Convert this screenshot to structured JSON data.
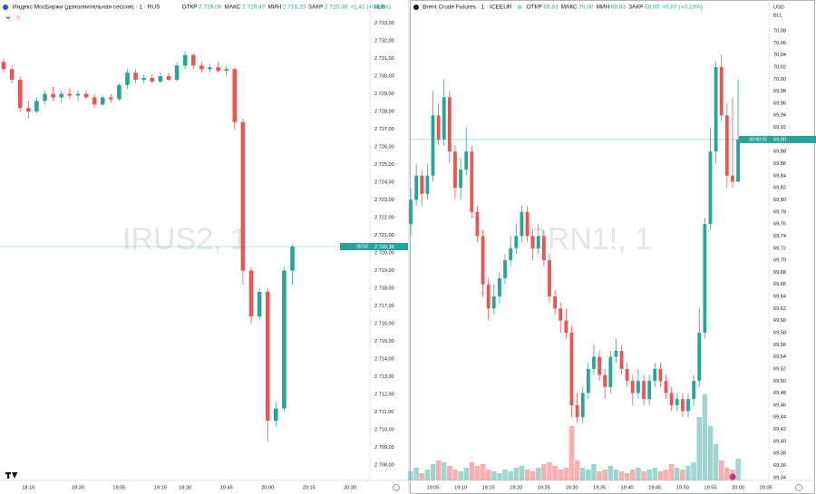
{
  "chart_data": [
    {
      "type": "candlestick",
      "title": "Индекс МосБиржи (дополнительная сессия) · 1 · RUS",
      "legend": [
        {
          "label": "ОТКР",
          "value": "2 719,00"
        },
        {
          "label": "МАКС",
          "value": "2 720,47"
        },
        {
          "label": "МИН",
          "value": "2 718,20"
        },
        {
          "label": "ЗАКР",
          "value": "2 720,36"
        }
      ],
      "change": "+1,41 (+0,05%)",
      "watermark": "IRUS2, 1",
      "currency": "RUB",
      "last_price_label": "2 720,36",
      "countdown": "00:52",
      "up_color": "#26a69a",
      "down_color": "#ef5350",
      "categories": [
        null,
        null,
        null,
        "18:15",
        null,
        null,
        null,
        null,
        null,
        "18:30",
        null,
        null,
        null,
        null,
        "19:05",
        null,
        null,
        null,
        null,
        "19:15",
        null,
        null,
        "19:30",
        null,
        null,
        null,
        null,
        "19:45",
        null,
        null,
        null,
        null,
        "20:00",
        null,
        null,
        null,
        null,
        "20:15",
        null,
        null,
        null,
        null,
        "20:30",
        null,
        null
      ],
      "open": [
        2730.8,
        2730.4,
        2729.8,
        2728.2,
        2728.0,
        2728.6,
        2729.0,
        2728.8,
        2729.0,
        2728.9,
        2729.0,
        2728.8,
        2728.4,
        2728.8,
        2728.7,
        2729.5,
        2730.2,
        2729.8,
        2729.9,
        2729.7,
        2730.0,
        2729.8,
        2730.6,
        2731.2,
        2730.6,
        2730.4,
        2730.5,
        2730.3,
        2730.4,
        2727.4,
        2719.0,
        2716.4,
        2717.8,
        2710.5,
        2711.2,
        2719.0,
        null,
        null,
        null,
        null,
        null,
        null,
        null,
        null,
        null
      ],
      "high": [
        2731.0,
        2730.6,
        2730.0,
        2728.6,
        2728.8,
        2729.2,
        2729.4,
        2729.2,
        2729.3,
        2729.2,
        2729.2,
        2729.0,
        2728.9,
        2729.0,
        2729.6,
        2730.4,
        2730.4,
        2730.1,
        2730.1,
        2730.2,
        2730.2,
        2730.8,
        2731.4,
        2731.3,
        2730.8,
        2730.7,
        2730.8,
        2730.6,
        2730.5,
        2727.6,
        2719.2,
        2718.0,
        2718.0,
        2711.6,
        2719.2,
        2720.47,
        null,
        null,
        null,
        null,
        null,
        null,
        null,
        null,
        null
      ],
      "low": [
        2730.2,
        2729.6,
        2728.0,
        2727.6,
        2727.9,
        2728.4,
        2728.6,
        2728.5,
        2728.7,
        2728.6,
        2728.7,
        2728.2,
        2728.3,
        2728.5,
        2728.6,
        2729.3,
        2729.6,
        2729.6,
        2729.6,
        2729.6,
        2729.7,
        2729.7,
        2730.4,
        2730.4,
        2730.2,
        2730.2,
        2730.2,
        2730.0,
        2727.0,
        2718.2,
        2716.0,
        2716.2,
        2709.3,
        2710.2,
        2711.0,
        2718.2,
        null,
        null,
        null,
        null,
        null,
        null,
        null,
        null,
        null
      ],
      "close": [
        2730.4,
        2729.8,
        2728.2,
        2728.0,
        2728.6,
        2729.0,
        2728.8,
        2729.0,
        2728.9,
        2729.0,
        2728.8,
        2728.4,
        2728.8,
        2728.7,
        2729.5,
        2730.2,
        2729.8,
        2729.9,
        2729.7,
        2730.0,
        2729.8,
        2730.6,
        2731.2,
        2730.6,
        2730.4,
        2730.5,
        2730.3,
        2730.4,
        2727.4,
        2719.0,
        2716.4,
        2717.8,
        2710.5,
        2711.2,
        2719.0,
        2720.36,
        null,
        null,
        null,
        null,
        null,
        null,
        null,
        null,
        null
      ],
      "ylim": [
        2707.2,
        2733.9
      ],
      "yticks": [
        {
          "value": 2708,
          "label": "2 708,00"
        },
        {
          "value": 2709,
          "label": "2 709,00"
        },
        {
          "value": 2710,
          "label": "2 710,00"
        },
        {
          "value": 2711,
          "label": "2 711,00"
        },
        {
          "value": 2712,
          "label": "2 712,00"
        },
        {
          "value": 2713,
          "label": "2 713,00"
        },
        {
          "value": 2714,
          "label": "2 714,00"
        },
        {
          "value": 2715,
          "label": "2 715,00"
        },
        {
          "value": 2716,
          "label": "2 716,00"
        },
        {
          "value": 2717,
          "label": "2 717,00"
        },
        {
          "value": 2718,
          "label": "2 718,00"
        },
        {
          "value": 2719,
          "label": "2 719,00"
        },
        {
          "value": 2720,
          "label": "2 720,00"
        },
        {
          "value": 2721,
          "label": "2 721,00"
        },
        {
          "value": 2722,
          "label": "2 722,00"
        },
        {
          "value": 2723,
          "label": "2 723,00"
        },
        {
          "value": 2724,
          "label": "2 724,00"
        },
        {
          "value": 2725,
          "label": "2 725,00"
        },
        {
          "value": 2726,
          "label": "2 726,00"
        },
        {
          "value": 2727,
          "label": "2 727,00"
        },
        {
          "value": 2728,
          "label": "2 728,00"
        },
        {
          "value": 2729,
          "label": "2 729,00"
        },
        {
          "value": 2730,
          "label": "2 730,00"
        },
        {
          "value": 2731,
          "label": "2 731,00"
        },
        {
          "value": 2732,
          "label": "2 732,00"
        },
        {
          "value": 2733,
          "label": "2 733,00"
        }
      ]
    },
    {
      "type": "candlestick",
      "title": "Brent Crude Futures · 1 · ICEEUR",
      "badge": "D",
      "legend": [
        {
          "label": "ОТКР",
          "value": "69,83"
        },
        {
          "label": "МАКС",
          "value": "70,00"
        },
        {
          "label": "МИН",
          "value": "69,83"
        },
        {
          "label": "ЗАКР",
          "value": "69,90"
        }
      ],
      "change": "+0,07 (+0,10%)",
      "watermark": "BRN1!, 1",
      "currency": "USD",
      "unit": "BLL",
      "last_price_label": "69,90",
      "countdown": "00:00:25",
      "up_color": "#26a69a",
      "down_color": "#ef5350",
      "categories": [
        null,
        null,
        null,
        null,
        "19:05",
        null,
        null,
        null,
        null,
        "19:10",
        null,
        null,
        null,
        null,
        "19:15",
        null,
        null,
        null,
        null,
        "19:20",
        null,
        null,
        null,
        null,
        "19:25",
        null,
        null,
        null,
        null,
        "19:30",
        null,
        null,
        null,
        null,
        "19:35",
        null,
        null,
        null,
        null,
        "19:40",
        null,
        null,
        null,
        null,
        "19:45",
        null,
        null,
        null,
        null,
        "19:50",
        null,
        null,
        null,
        null,
        "19:55",
        null,
        null,
        null,
        null,
        "20:00",
        null,
        null,
        null,
        null,
        "20:05"
      ],
      "open": [
        69.76,
        69.8,
        69.84,
        69.81,
        69.84,
        69.94,
        69.9,
        69.97,
        69.88,
        69.82,
        69.85,
        69.88,
        69.78,
        69.74,
        69.66,
        69.62,
        69.64,
        69.67,
        69.7,
        69.72,
        69.74,
        69.78,
        69.74,
        69.72,
        69.74,
        69.7,
        69.64,
        69.62,
        69.6,
        69.58,
        69.46,
        69.44,
        69.48,
        69.52,
        69.54,
        69.51,
        69.49,
        69.54,
        69.55,
        69.52,
        69.5,
        69.48,
        69.5,
        69.47,
        69.5,
        69.52,
        69.5,
        69.48,
        69.46,
        69.47,
        69.45,
        69.47,
        69.5,
        69.58,
        69.76,
        69.88,
        70.02,
        69.94,
        69.84,
        69.83,
        null,
        null,
        null,
        null,
        null
      ],
      "high": [
        69.82,
        69.86,
        69.85,
        69.86,
        69.98,
        69.96,
        70.0,
        69.98,
        69.89,
        69.87,
        69.92,
        69.89,
        69.79,
        69.75,
        69.67,
        69.66,
        69.68,
        69.71,
        69.74,
        69.76,
        69.79,
        69.79,
        69.75,
        69.76,
        69.75,
        69.71,
        69.65,
        69.63,
        69.62,
        69.59,
        69.48,
        69.49,
        69.53,
        69.56,
        69.55,
        69.52,
        69.55,
        69.57,
        69.56,
        69.53,
        69.51,
        69.52,
        69.51,
        69.51,
        69.53,
        69.53,
        69.51,
        69.49,
        69.48,
        69.48,
        69.48,
        69.51,
        69.62,
        69.77,
        69.92,
        70.03,
        70.04,
        69.96,
        69.97,
        70.0,
        null,
        null,
        null,
        null,
        null
      ],
      "low": [
        69.74,
        69.79,
        69.79,
        69.8,
        69.83,
        69.89,
        69.89,
        69.86,
        69.8,
        69.8,
        69.84,
        69.77,
        69.73,
        69.64,
        69.6,
        69.61,
        69.63,
        69.66,
        69.69,
        69.71,
        69.73,
        69.73,
        69.7,
        69.71,
        69.69,
        69.63,
        69.61,
        69.58,
        69.57,
        69.44,
        69.43,
        69.43,
        69.47,
        69.51,
        69.5,
        69.47,
        69.48,
        69.53,
        69.51,
        69.49,
        69.46,
        69.47,
        69.46,
        69.46,
        69.49,
        69.49,
        69.47,
        69.45,
        69.45,
        69.44,
        69.44,
        69.46,
        69.49,
        69.57,
        69.75,
        69.86,
        69.93,
        69.82,
        69.82,
        69.83,
        null,
        null,
        null,
        null,
        null
      ],
      "close": [
        69.8,
        69.84,
        69.81,
        69.84,
        69.94,
        69.9,
        69.97,
        69.88,
        69.82,
        69.85,
        69.88,
        69.78,
        69.74,
        69.66,
        69.62,
        69.64,
        69.67,
        69.7,
        69.72,
        69.74,
        69.78,
        69.74,
        69.72,
        69.74,
        69.7,
        69.64,
        69.62,
        69.6,
        69.58,
        69.46,
        69.44,
        69.48,
        69.52,
        69.54,
        69.51,
        69.49,
        69.54,
        69.55,
        69.52,
        69.5,
        69.48,
        69.5,
        69.47,
        69.5,
        69.52,
        69.5,
        69.48,
        69.46,
        69.47,
        69.45,
        69.47,
        69.5,
        69.58,
        69.76,
        69.88,
        70.02,
        69.94,
        69.84,
        69.83,
        69.9,
        null,
        null,
        null,
        null,
        null
      ],
      "volume": [
        10,
        14,
        8,
        12,
        18,
        22,
        20,
        16,
        12,
        10,
        14,
        20,
        16,
        18,
        12,
        10,
        8,
        12,
        10,
        14,
        16,
        12,
        10,
        14,
        18,
        20,
        16,
        12,
        14,
        60,
        22,
        14,
        12,
        18,
        10,
        12,
        16,
        12,
        10,
        8,
        12,
        14,
        10,
        12,
        14,
        10,
        12,
        18,
        14,
        12,
        16,
        20,
        70,
        95,
        60,
        40,
        22,
        14,
        12,
        24,
        null,
        null,
        null,
        null,
        null
      ],
      "ylim": [
        69.33,
        70.1
      ],
      "yticks": [
        {
          "value": 69.34,
          "label": "69,34"
        },
        {
          "value": 69.36,
          "label": "69,36"
        },
        {
          "value": 69.38,
          "label": "69,38"
        },
        {
          "value": 69.4,
          "label": "69,40"
        },
        {
          "value": 69.42,
          "label": "69,42"
        },
        {
          "value": 69.44,
          "label": "69,44"
        },
        {
          "value": 69.46,
          "label": "69,46"
        },
        {
          "value": 69.48,
          "label": "69,48"
        },
        {
          "value": 69.5,
          "label": "69,50"
        },
        {
          "value": 69.52,
          "label": "69,52"
        },
        {
          "value": 69.54,
          "label": "69,54"
        },
        {
          "value": 69.56,
          "label": "69,56"
        },
        {
          "value": 69.58,
          "label": "69,58"
        },
        {
          "value": 69.6,
          "label": "69,60"
        },
        {
          "value": 69.62,
          "label": "69,62"
        },
        {
          "value": 69.64,
          "label": "69,64"
        },
        {
          "value": 69.66,
          "label": "69,66"
        },
        {
          "value": 69.68,
          "label": "69,68"
        },
        {
          "value": 69.7,
          "label": "69,70"
        },
        {
          "value": 69.72,
          "label": "69,72"
        },
        {
          "value": 69.74,
          "label": "69,74"
        },
        {
          "value": 69.76,
          "label": "69,76"
        },
        {
          "value": 69.78,
          "label": "69,78"
        },
        {
          "value": 69.8,
          "label": "69,80"
        },
        {
          "value": 69.82,
          "label": "69,82"
        },
        {
          "value": 69.84,
          "label": "69,84"
        },
        {
          "value": 69.86,
          "label": "69,86"
        },
        {
          "value": 69.88,
          "label": "69,88"
        },
        {
          "value": 69.9,
          "label": "69,90"
        },
        {
          "value": 69.92,
          "label": "69,92"
        },
        {
          "value": 69.94,
          "label": "69,94"
        },
        {
          "value": 69.96,
          "label": "69,96"
        },
        {
          "value": 69.98,
          "label": "69,98"
        },
        {
          "value": 70.0,
          "label": "70,00"
        },
        {
          "value": 70.02,
          "label": "70,02"
        },
        {
          "value": 70.04,
          "label": "70,04"
        },
        {
          "value": 70.06,
          "label": "70,06"
        },
        {
          "value": 70.08,
          "label": "70,08"
        }
      ]
    }
  ]
}
